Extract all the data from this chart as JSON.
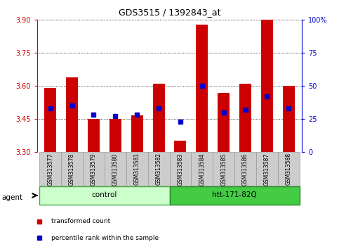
{
  "title": "GDS3515 / 1392843_at",
  "samples": [
    "GSM313577",
    "GSM313578",
    "GSM313579",
    "GSM313580",
    "GSM313581",
    "GSM313582",
    "GSM313583",
    "GSM313584",
    "GSM313585",
    "GSM313586",
    "GSM313587",
    "GSM313588"
  ],
  "bar_values": [
    3.59,
    3.64,
    3.45,
    3.45,
    3.465,
    3.61,
    3.35,
    3.88,
    3.57,
    3.61,
    3.9,
    3.6
  ],
  "percentile_values": [
    33,
    35,
    28,
    27,
    28,
    33,
    23,
    50,
    30,
    32,
    42,
    33
  ],
  "ymin": 3.3,
  "ymax": 3.9,
  "y2min": 0,
  "y2max": 100,
  "yticks": [
    3.3,
    3.45,
    3.6,
    3.75,
    3.9
  ],
  "y2ticks": [
    0,
    25,
    50,
    75,
    100
  ],
  "y2ticklabels": [
    "0",
    "25",
    "50",
    "75",
    "100%"
  ],
  "bar_color": "#cc0000",
  "dot_color": "#0000cc",
  "bar_bottom": 3.3,
  "groups": [
    {
      "label": "control",
      "start": 0,
      "end": 5,
      "color": "#ccffcc",
      "border": "#44aa44"
    },
    {
      "label": "htt-171-82Q",
      "start": 6,
      "end": 11,
      "color": "#44cc44",
      "border": "#228822"
    }
  ],
  "agent_label": "agent",
  "legend_items": [
    {
      "color": "#cc0000",
      "label": "transformed count"
    },
    {
      "color": "#0000cc",
      "label": "percentile rank within the sample"
    }
  ],
  "left_color": "#cc0000",
  "right_color": "#0000cc",
  "plot_bg_color": "#ffffff",
  "tick_bg_color": "#cccccc"
}
